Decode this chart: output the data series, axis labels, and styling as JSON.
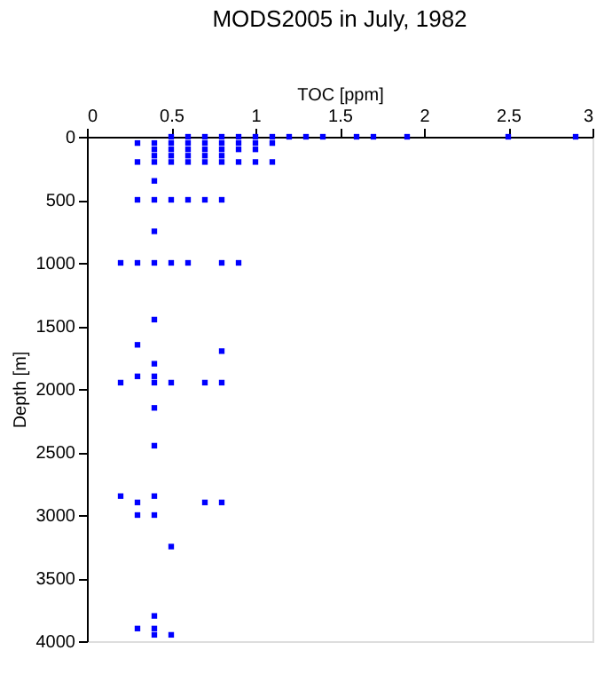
{
  "chart_data": {
    "type": "scatter",
    "title": "MODS2005 in July, 1982",
    "xlabel": "TOC [ppm]",
    "ylabel": "Depth [m]",
    "x": [
      0.5,
      0.6,
      0.7,
      0.8,
      0.9,
      1.0,
      1.1,
      1.2,
      1.3,
      1.4,
      1.6,
      1.7,
      1.9,
      2.5,
      2.9,
      0.3,
      0.4,
      0.5,
      0.6,
      0.7,
      0.8,
      0.9,
      1.0,
      1.1,
      0.4,
      0.5,
      0.6,
      0.7,
      0.8,
      0.9,
      1.0,
      0.4,
      0.5,
      0.6,
      0.7,
      0.8,
      0.3,
      0.4,
      0.5,
      0.6,
      0.7,
      0.8,
      0.9,
      1.0,
      1.1,
      0.4,
      0.3,
      0.4,
      0.5,
      0.6,
      0.7,
      0.8,
      0.4,
      0.2,
      0.3,
      0.4,
      0.5,
      0.6,
      0.8,
      0.9,
      0.4,
      0.3,
      0.8,
      0.4,
      0.3,
      0.4,
      0.2,
      0.4,
      0.5,
      0.7,
      0.8,
      0.4,
      0.4,
      0.2,
      0.4,
      0.3,
      0.7,
      0.8,
      0.3,
      0.4,
      0.5,
      0.4,
      0.3,
      0.4,
      0.4,
      0.5
    ],
    "values": [
      0,
      0,
      0,
      0,
      0,
      0,
      0,
      0,
      0,
      0,
      0,
      0,
      0,
      0,
      0,
      50,
      50,
      50,
      50,
      50,
      50,
      50,
      50,
      50,
      100,
      100,
      100,
      100,
      100,
      100,
      100,
      150,
      150,
      150,
      150,
      150,
      200,
      200,
      200,
      200,
      200,
      200,
      200,
      200,
      200,
      350,
      500,
      500,
      500,
      500,
      500,
      500,
      750,
      1000,
      1000,
      1000,
      1000,
      1000,
      1000,
      1000,
      1450,
      1650,
      1700,
      1800,
      1900,
      1900,
      1950,
      1950,
      1950,
      1950,
      1950,
      2150,
      2450,
      2850,
      2850,
      2900,
      2900,
      2900,
      3000,
      3000,
      3250,
      3800,
      3900,
      3900,
      3950,
      3950
    ],
    "color": "#0000ff",
    "marker": "square",
    "xlim": [
      0,
      3
    ],
    "xticks": [
      0,
      0.5,
      1,
      1.5,
      2,
      2.5,
      3
    ],
    "ylim": [
      4000,
      0
    ],
    "yticks": [
      0,
      500,
      1000,
      1500,
      2000,
      2500,
      3000,
      3500,
      4000
    ],
    "grid": false
  }
}
